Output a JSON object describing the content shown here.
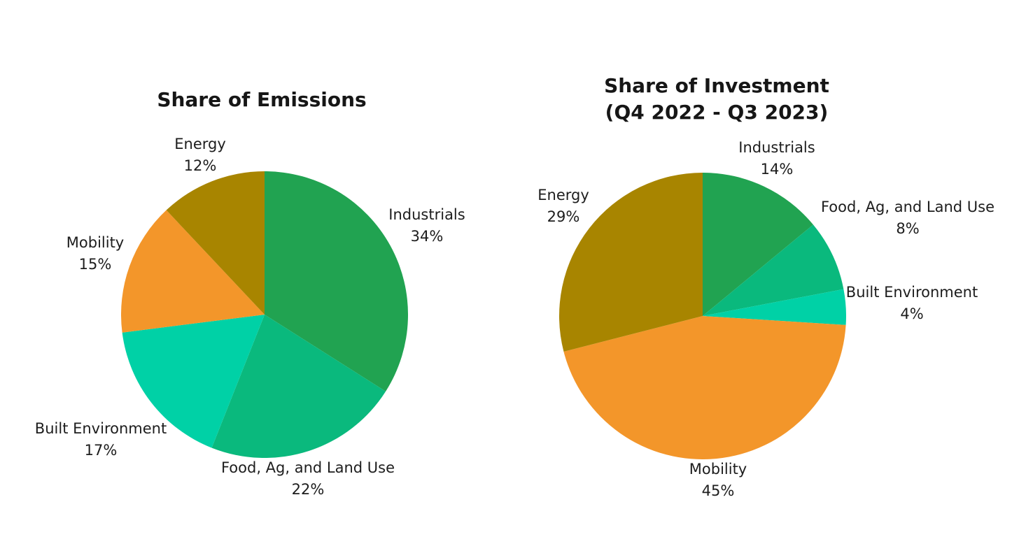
{
  "page": {
    "background": "#ffffff",
    "title_text_color": "#161616",
    "label_text_color": "#1d1d1d"
  },
  "colors": {
    "industrials": "#21A351",
    "food": "#0AB97D",
    "built": "#00D1A6",
    "mobility": "#F3962A",
    "energy": "#A88500"
  },
  "chart_data": [
    {
      "type": "pie",
      "title": "Share of Emissions",
      "start": "top",
      "direction": "clockwise",
      "legend_position": "none",
      "slices": [
        {
          "label": "Industrials",
          "value": 34,
          "pct_text": "34%",
          "color_key": "industrials"
        },
        {
          "label": "Food, Ag, and Land Use",
          "value": 22,
          "pct_text": "22%",
          "color_key": "food"
        },
        {
          "label": "Built Environment",
          "value": 17,
          "pct_text": "17%",
          "color_key": "built"
        },
        {
          "label": "Mobility",
          "value": 15,
          "pct_text": "15%",
          "color_key": "mobility"
        },
        {
          "label": "Energy",
          "value": 12,
          "pct_text": "12%",
          "color_key": "energy"
        }
      ]
    },
    {
      "type": "pie",
      "title": "Share of Investment",
      "subtitle": "(Q4 2022 - Q3 2023)",
      "start": "top",
      "direction": "clockwise",
      "legend_position": "none",
      "slices": [
        {
          "label": "Industrials",
          "value": 14,
          "pct_text": "14%",
          "color_key": "industrials"
        },
        {
          "label": "Food, Ag, and Land Use",
          "value": 8,
          "pct_text": "8%",
          "color_key": "food"
        },
        {
          "label": "Built Environment",
          "value": 4,
          "pct_text": "4%",
          "color_key": "built"
        },
        {
          "label": "Mobility",
          "value": 45,
          "pct_text": "45%",
          "color_key": "mobility"
        },
        {
          "label": "Energy",
          "value": 29,
          "pct_text": "29%",
          "color_key": "energy"
        }
      ]
    }
  ]
}
